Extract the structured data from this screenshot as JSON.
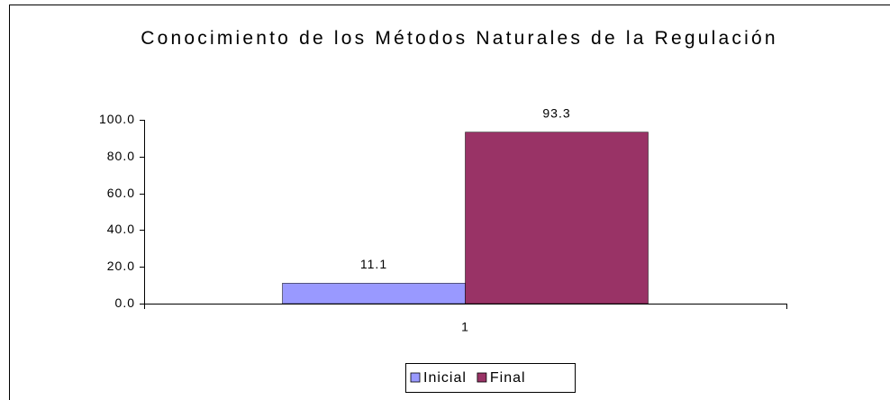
{
  "chart_data": {
    "type": "bar",
    "title": "Conocimiento de los Métodos Naturales de la Regulación",
    "categories": [
      "1"
    ],
    "series": [
      {
        "name": "Inicial",
        "color": "#9999ff",
        "values": [
          11.1
        ]
      },
      {
        "name": "Final",
        "color": "#993366",
        "values": [
          93.3
        ]
      }
    ],
    "ylim": [
      0,
      100
    ],
    "yticks": [
      {
        "value": 0,
        "label": "0.0"
      },
      {
        "value": 20,
        "label": "20.0"
      },
      {
        "value": 40,
        "label": "40.0"
      },
      {
        "value": 60,
        "label": "60.0"
      },
      {
        "value": 80,
        "label": "80.0"
      },
      {
        "value": 100,
        "label": "100.0"
      }
    ],
    "legend": "bottom"
  }
}
